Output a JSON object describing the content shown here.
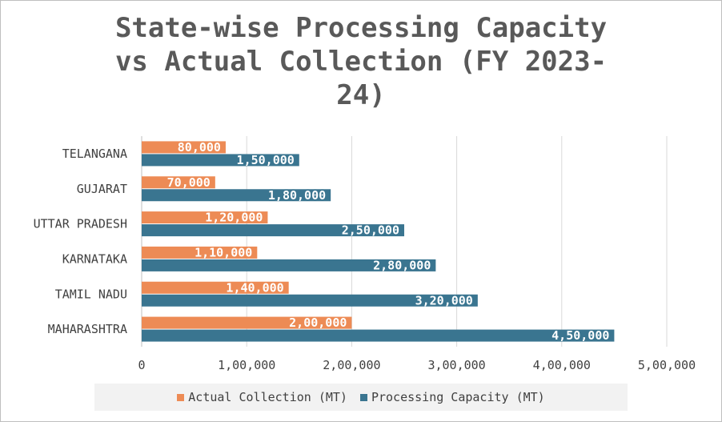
{
  "chart_data": {
    "type": "bar",
    "orientation": "horizontal",
    "title_lines": [
      "State-wise Processing Capacity",
      "vs Actual Collection (FY 2023-",
      "24)"
    ],
    "categories": [
      "TELANGANA",
      "GUJARAT",
      "UTTAR PRADESH",
      "KARNATAKA",
      "TAMIL NADU",
      "MAHARASHTRA"
    ],
    "series": [
      {
        "name": "Actual Collection (MT)",
        "color": "#ed8b55",
        "values": [
          80000,
          70000,
          120000,
          110000,
          140000,
          200000
        ],
        "labels": [
          "80,000",
          "70,000",
          "1,20,000",
          "1,10,000",
          "1,40,000",
          "2,00,000"
        ]
      },
      {
        "name": "Processing Capacity (MT)",
        "color": "#3a7590",
        "values": [
          150000,
          180000,
          250000,
          280000,
          320000,
          450000
        ],
        "labels": [
          "1,50,000",
          "1,80,000",
          "2,50,000",
          "2,80,000",
          "3,20,000",
          "4,50,000"
        ]
      }
    ],
    "xlim": [
      0,
      500000
    ],
    "xticks": [
      0,
      100000,
      200000,
      300000,
      400000,
      500000
    ],
    "xtick_labels": [
      "0",
      "1,00,000",
      "2,00,000",
      "3,00,000",
      "4,00,000",
      "5,00,000"
    ],
    "grid": true,
    "legend_position": "bottom"
  }
}
